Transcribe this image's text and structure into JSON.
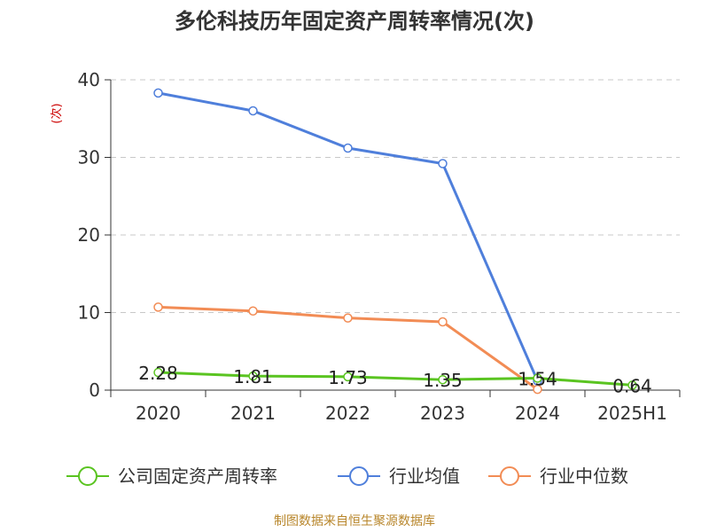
{
  "title": "多伦科技历年固定资产周转率情况(次)",
  "source": "制图数据来自恒生聚源数据库",
  "chart_data": {
    "type": "line",
    "title": "多伦科技历年固定资产周转率情况(次)",
    "ylabel": "(次)",
    "xlabel": "",
    "categories": [
      "2020",
      "2021",
      "2022",
      "2023",
      "2024",
      "2025H1"
    ],
    "ylim": [
      0,
      40
    ],
    "yticks": [
      0,
      10,
      20,
      30,
      40
    ],
    "grid": true,
    "legend_position": "bottom",
    "series": [
      {
        "name": "公司固定资产周转率",
        "color": "#5ac421",
        "values": [
          2.28,
          1.81,
          1.73,
          1.35,
          1.54,
          0.64
        ],
        "labels": [
          "2.28",
          "1.81",
          "1.73",
          "1.35",
          "1.54",
          "0.64"
        ]
      },
      {
        "name": "行业均值",
        "color": "#4f7fdb",
        "values": [
          38.3,
          36.0,
          31.2,
          29.2,
          1.2,
          null
        ]
      },
      {
        "name": "行业中位数",
        "color": "#f28c55",
        "values": [
          10.7,
          10.2,
          9.3,
          8.8,
          0.1,
          null
        ]
      }
    ]
  }
}
